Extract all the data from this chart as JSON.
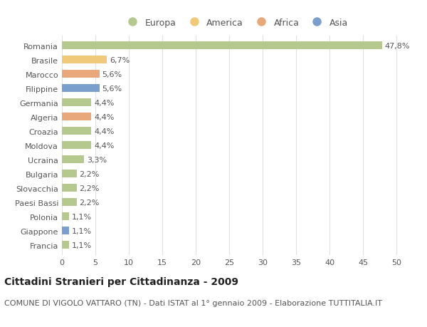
{
  "countries": [
    "Romania",
    "Brasile",
    "Marocco",
    "Filippine",
    "Germania",
    "Algeria",
    "Croazia",
    "Moldova",
    "Ucraina",
    "Bulgaria",
    "Slovacchia",
    "Paesi Bassi",
    "Polonia",
    "Giappone",
    "Francia"
  ],
  "values": [
    47.8,
    6.7,
    5.6,
    5.6,
    4.4,
    4.4,
    4.4,
    4.4,
    3.3,
    2.2,
    2.2,
    2.2,
    1.1,
    1.1,
    1.1
  ],
  "labels": [
    "47,8%",
    "6,7%",
    "5,6%",
    "5,6%",
    "4,4%",
    "4,4%",
    "4,4%",
    "4,4%",
    "3,3%",
    "2,2%",
    "2,2%",
    "2,2%",
    "1,1%",
    "1,1%",
    "1,1%"
  ],
  "continents": [
    "Europa",
    "America",
    "Africa",
    "Asia",
    "Europa",
    "Africa",
    "Europa",
    "Europa",
    "Europa",
    "Europa",
    "Europa",
    "Europa",
    "Europa",
    "Asia",
    "Europa"
  ],
  "continent_colors": {
    "Europa": "#b5c98e",
    "America": "#f0c97a",
    "Africa": "#e8a87c",
    "Asia": "#7b9fcc"
  },
  "legend_order": [
    "Europa",
    "America",
    "Africa",
    "Asia"
  ],
  "title1": "Cittadini Stranieri per Cittadinanza - 2009",
  "title2": "COMUNE DI VIGOLO VATTARO (TN) - Dati ISTAT al 1° gennaio 2009 - Elaborazione TUTTITALIA.IT",
  "xlim": [
    0,
    52
  ],
  "xticks": [
    0,
    5,
    10,
    15,
    20,
    25,
    30,
    35,
    40,
    45,
    50
  ],
  "background_color": "#ffffff",
  "grid_color": "#e0e0e0",
  "bar_height": 0.55,
  "label_fontsize": 8.0,
  "tick_fontsize": 8.0,
  "title1_fontsize": 10.0,
  "title2_fontsize": 8.0,
  "text_color": "#555555",
  "title_color": "#222222"
}
